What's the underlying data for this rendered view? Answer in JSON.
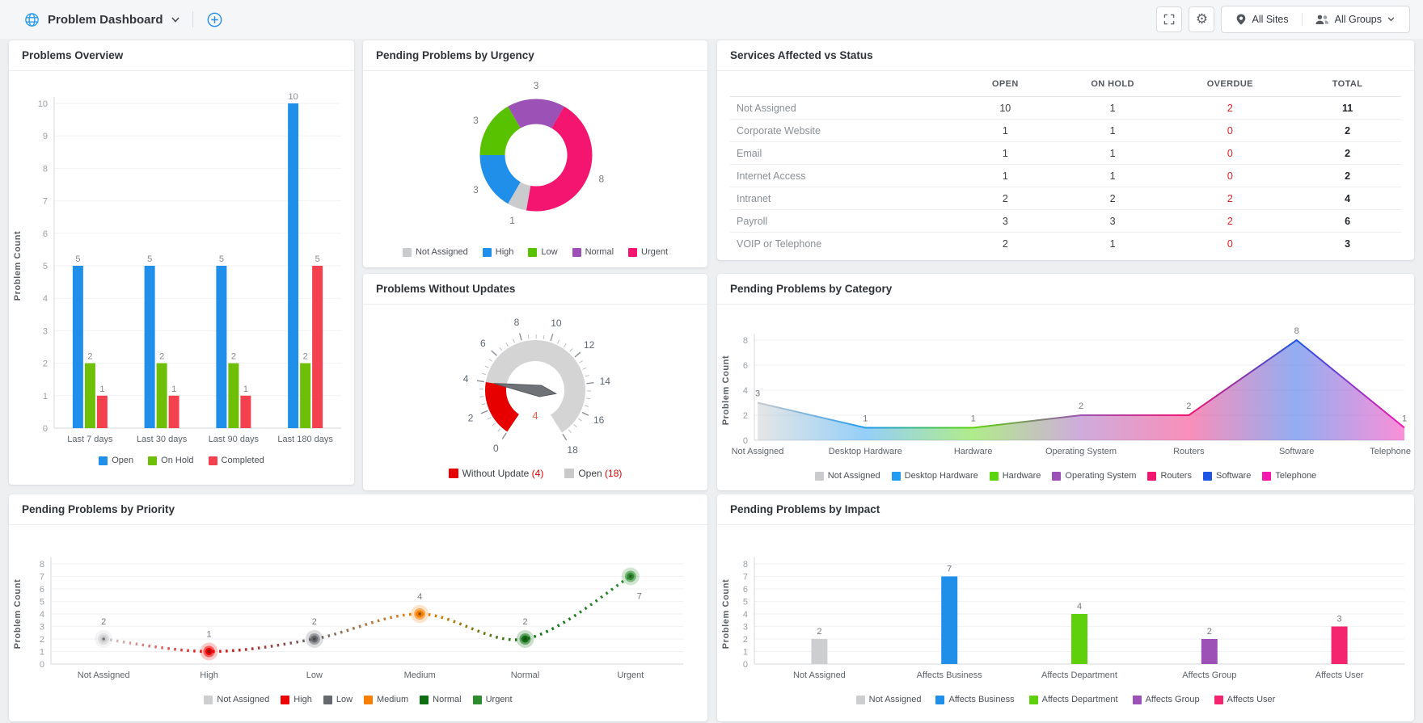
{
  "header": {
    "title": "Problem Dashboard",
    "sites_label": "All Sites",
    "groups_label": "All Groups"
  },
  "panels": {
    "overview": {
      "title": "Problems Overview",
      "chart_data": {
        "type": "bar",
        "categories": [
          "Last 7 days",
          "Last 30 days",
          "Last 90 days",
          "Last 180 days"
        ],
        "series": [
          {
            "name": "Open",
            "color": "#1F8FEA",
            "values": [
              5,
              5,
              5,
              10
            ]
          },
          {
            "name": "On Hold",
            "color": "#6FBF08",
            "values": [
              2,
              2,
              2,
              2
            ]
          },
          {
            "name": "Completed",
            "color": "#F4414F",
            "values": [
              1,
              1,
              1,
              5
            ]
          }
        ],
        "ylabel": "Problem Count",
        "ylim": [
          0,
          10
        ],
        "ytick": 1
      }
    },
    "urgency": {
      "title": "Pending Problems by Urgency",
      "chart_data": {
        "type": "pie",
        "donut": true,
        "total": 18,
        "slices": [
          {
            "label": "Not Assigned",
            "value": 1,
            "color": "#C9CBCD"
          },
          {
            "label": "High",
            "value": 3,
            "color": "#1F8FEA"
          },
          {
            "label": "Low",
            "value": 3,
            "color": "#59C200"
          },
          {
            "label": "Normal",
            "value": 3,
            "color": "#9B51B5"
          },
          {
            "label": "Urgent",
            "value": 8,
            "color": "#F3156F"
          }
        ]
      }
    },
    "services": {
      "title": "Services Affected vs Status",
      "table": {
        "columns": [
          "",
          "OPEN",
          "ON HOLD",
          "OVERDUE",
          "TOTAL"
        ],
        "rows": [
          {
            "name": "Not Assigned",
            "open": 10,
            "on_hold": 1,
            "overdue": 2,
            "total": 11
          },
          {
            "name": "Corporate Website",
            "open": 1,
            "on_hold": 1,
            "overdue": 0,
            "total": 2
          },
          {
            "name": "Email",
            "open": 1,
            "on_hold": 1,
            "overdue": 0,
            "total": 2
          },
          {
            "name": "Internet Access",
            "open": 1,
            "on_hold": 1,
            "overdue": 0,
            "total": 2
          },
          {
            "name": "Intranet",
            "open": 2,
            "on_hold": 2,
            "overdue": 2,
            "total": 4
          },
          {
            "name": "Payroll",
            "open": 3,
            "on_hold": 3,
            "overdue": 2,
            "total": 6
          },
          {
            "name": "VOIP or Telephone",
            "open": 2,
            "on_hold": 1,
            "overdue": 0,
            "total": 3
          }
        ]
      }
    },
    "updates": {
      "title": "Problems Without Updates",
      "chart_data": {
        "type": "gauge",
        "min": 0,
        "max": 18,
        "value": 4,
        "major_tick": 2,
        "minor_tick": 0.5,
        "value_color": "#E4604B",
        "arc_color": "#E60000",
        "ring_color": "#D4D4D4",
        "legend": [
          {
            "label": "Without Update",
            "count": 4,
            "color": "#E60000"
          },
          {
            "label": "Open",
            "count": 18,
            "color": "#C9C9C9"
          }
        ]
      }
    },
    "category": {
      "title": "Pending Problems by Category",
      "chart_data": {
        "type": "area",
        "points": [
          {
            "label": "Not Assigned",
            "value": 3,
            "color": "#C9CBCD"
          },
          {
            "label": "Desktop Hardware",
            "value": 1,
            "color": "#229BF0"
          },
          {
            "label": "Hardware",
            "value": 1,
            "color": "#5BD60D"
          },
          {
            "label": "Operating System",
            "value": 2,
            "color": "#9B51B5"
          },
          {
            "label": "Routers",
            "value": 2,
            "color": "#F3156F"
          },
          {
            "label": "Software",
            "value": 8,
            "color": "#1E55E4"
          },
          {
            "label": "Telephone",
            "value": 1,
            "color": "#F517AE"
          }
        ],
        "ylabel": "Problem Count",
        "ylim": [
          0,
          8
        ],
        "ytick": 2
      }
    },
    "priority": {
      "title": "Pending Problems by Priority",
      "chart_data": {
        "type": "line",
        "points": [
          {
            "label": "Not Assigned",
            "value": 2,
            "color": "#CDCED0"
          },
          {
            "label": "High",
            "value": 1,
            "color": "#EE0000"
          },
          {
            "label": "Low",
            "value": 2,
            "color": "#666A6E"
          },
          {
            "label": "Medium",
            "value": 4,
            "color": "#F77F00"
          },
          {
            "label": "Normal",
            "value": 2,
            "color": "#0E6F12"
          },
          {
            "label": "Urgent",
            "value": 7,
            "color": "#2E8B2E"
          }
        ],
        "ylabel": "Problem Count",
        "ylim": [
          0,
          8
        ],
        "ytick": 1
      }
    },
    "impact": {
      "title": "Pending Problems by Impact",
      "chart_data": {
        "type": "bar",
        "points": [
          {
            "label": "Not Assigned",
            "value": 2,
            "color": "#CDCED0"
          },
          {
            "label": "Affects Business",
            "value": 7,
            "color": "#1F8FEA"
          },
          {
            "label": "Affects Department",
            "value": 4,
            "color": "#5ED10C"
          },
          {
            "label": "Affects Group",
            "value": 2,
            "color": "#9B51B5"
          },
          {
            "label": "Affects User",
            "value": 3,
            "color": "#F5246F"
          }
        ],
        "ylabel": "Problem Count",
        "ylim": [
          0,
          8
        ],
        "ytick": 1
      }
    }
  }
}
